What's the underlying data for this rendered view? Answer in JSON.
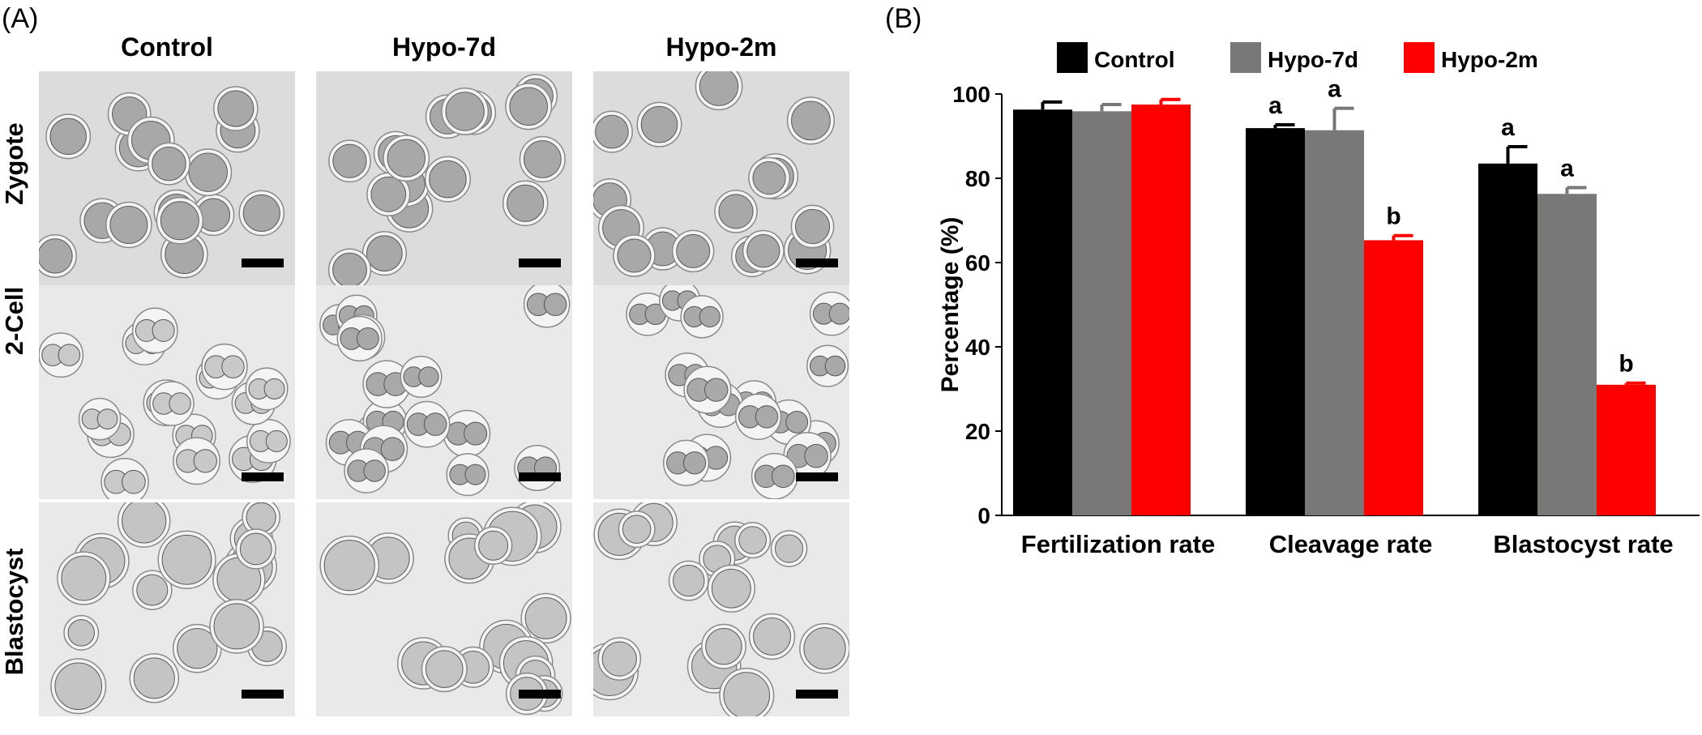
{
  "panels": {
    "a": "(A)",
    "b": "(B)"
  },
  "micrographs": {
    "columns": [
      "Control",
      "Hypo-7d",
      "Hypo-2m"
    ],
    "rows": [
      "Zygote",
      "2-Cell",
      "Blastocyst"
    ]
  },
  "chart_data": {
    "type": "bar",
    "categories": [
      "Fertilization rate",
      "Cleavage rate",
      "Blastocyst rate"
    ],
    "series": [
      {
        "name": "Control",
        "color": "#000000",
        "values": [
          96.3,
          91.9,
          83.5
        ],
        "errors": [
          1.8,
          0.8,
          4.0
        ],
        "letters": [
          "",
          "a",
          "a"
        ]
      },
      {
        "name": "Hypo-7d",
        "color": "#7a7876",
        "values": [
          95.9,
          91.4,
          76.3
        ],
        "errors": [
          1.6,
          5.2,
          1.5
        ],
        "letters": [
          "",
          "a",
          "a"
        ]
      },
      {
        "name": "Hypo-2m",
        "color": "#ff0000",
        "values": [
          97.5,
          65.3,
          31.0
        ],
        "errors": [
          1.2,
          1.1,
          0.4
        ],
        "letters": [
          "",
          "b",
          "b"
        ]
      }
    ],
    "title": "",
    "xlabel": "",
    "ylabel": "Percentage (%)",
    "ylim": [
      0,
      100
    ],
    "yticks": [
      0,
      20,
      40,
      60,
      80,
      100
    ],
    "grid": false,
    "legend": "top"
  }
}
